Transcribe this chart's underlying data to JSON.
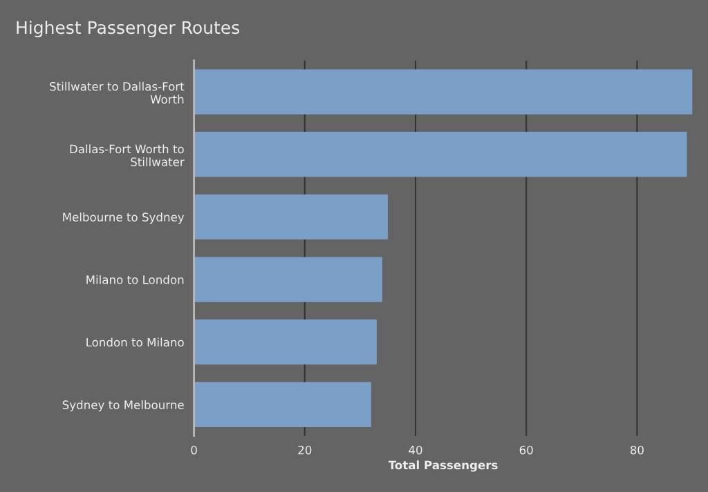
{
  "chart_data": {
    "type": "bar",
    "orientation": "horizontal",
    "title": "Highest Passenger Routes",
    "xlabel": "Total Passengers",
    "categories": [
      "Stillwater to Dallas-Fort\nWorth",
      "Dallas-Fort Worth to\nStillwater",
      "Melbourne to Sydney",
      "Milano to London",
      "London to Milano",
      "Sydney to Melbourne"
    ],
    "values": [
      90,
      89,
      35,
      34,
      33,
      32
    ],
    "color": "#7b9fc6",
    "xlim": [
      0,
      90
    ],
    "xticks": [
      0,
      20,
      40,
      60,
      80
    ],
    "grid": "x",
    "legend": false
  }
}
